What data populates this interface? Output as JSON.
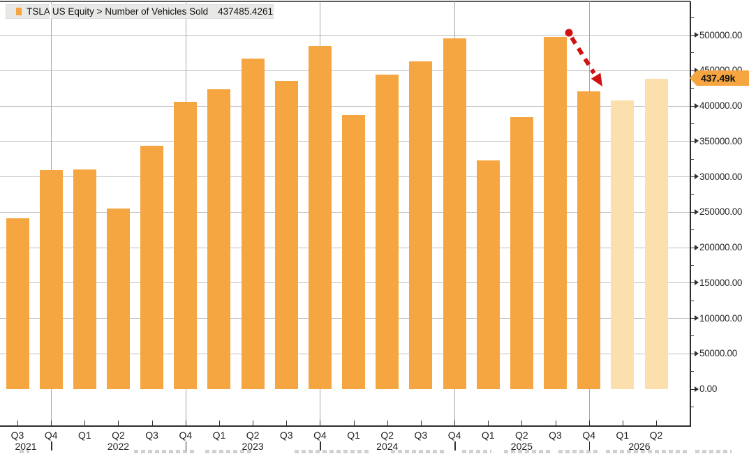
{
  "window": {
    "app": "Bloomberg chart panel"
  },
  "legend": {
    "series_label": "TSLA US Equity > Number of Vehicles Sold",
    "series_value": "437485.4261",
    "swatch_color": "#F5A640"
  },
  "last_value_tag": {
    "text": "437.49k",
    "color": "#F5A640"
  },
  "colors": {
    "bar": "#F5A640",
    "bar_estimate": "#FBDFAD",
    "arrow": "#CF1212",
    "hgrid": "#BFBFBF",
    "vgrid": "#A8A8A8",
    "axis": "#2F2F2F",
    "legend_bg": "#E8E8E6",
    "text": "#222222"
  },
  "y_axis": {
    "tick_labels": [
      "500000.00",
      "450000.00",
      "400000.00",
      "350000.00",
      "300000.00",
      "250000.00",
      "200000.00",
      "150000.00",
      "100000.00",
      "50000.00",
      "0.00"
    ],
    "tick_values": [
      500000,
      450000,
      400000,
      350000,
      300000,
      250000,
      200000,
      150000,
      100000,
      50000,
      0
    ],
    "minor_step": 25000,
    "side": "right"
  },
  "x_axis": {
    "years": [
      {
        "label": "2021",
        "at": 0.25
      },
      {
        "label": "2022",
        "at": 3
      },
      {
        "label": "2023",
        "at": 7
      },
      {
        "label": "2024",
        "at": 11
      },
      {
        "label": "2025",
        "at": 15
      },
      {
        "label": "2026",
        "at": 18.5
      }
    ],
    "year_tick_indices": [
      1,
      5,
      9,
      13,
      17
    ]
  },
  "chart_data": {
    "type": "bar",
    "title": "TSLA US Equity > Number of Vehicles Sold",
    "categories": [
      "Q3 2021",
      "Q4 2021",
      "Q1 2022",
      "Q2 2022",
      "Q3 2022",
      "Q4 2022",
      "Q1 2023",
      "Q2 2023",
      "Q3 2023",
      "Q4 2023",
      "Q1 2024",
      "Q2 2024",
      "Q3 2024",
      "Q4 2024",
      "Q1 2025",
      "Q2 2025",
      "Q3 2025",
      "Q4 2025",
      "Q1 2026",
      "Q2 2026"
    ],
    "values": [
      241300,
      308600,
      310048,
      254695,
      343830,
      405278,
      422875,
      466140,
      435059,
      484507,
      386810,
      443956,
      462890,
      495570,
      323000,
      384000,
      497099,
      420000,
      407000,
      437485.43
    ],
    "estimate_flags": [
      false,
      false,
      false,
      false,
      false,
      false,
      false,
      false,
      false,
      false,
      false,
      false,
      false,
      false,
      false,
      false,
      false,
      false,
      true,
      true
    ],
    "xlabel": "",
    "ylabel": "",
    "ylim": [
      0,
      540000
    ],
    "y_major_step": 50000,
    "grid": true,
    "legend_position": "top-left",
    "last_value": 437485.4261,
    "last_value_label": "437.49k",
    "annotation": {
      "type": "dashed-arrow-down",
      "from_category": "Q3 2025",
      "to_category": "Q4 2025",
      "color": "#CF1212"
    }
  },
  "bottom_fragments_note": "cut-off gray text strip at bottom edge"
}
